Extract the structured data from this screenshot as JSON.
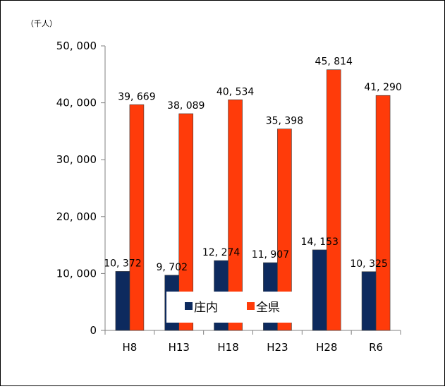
{
  "chart_data": {
    "type": "bar",
    "unit_label": "（千人）",
    "categories": [
      "H8",
      "H13",
      "H18",
      "H23",
      "H28",
      "R6"
    ],
    "series": [
      {
        "name": "庄内",
        "values": [
          10372,
          9702,
          12274,
          11907,
          14153,
          10325
        ],
        "labels": [
          "10, 372",
          "9, 702",
          "12, 274",
          "11, 907",
          "14, 153",
          "10, 325"
        ],
        "color": "#0d2a5e"
      },
      {
        "name": "全県",
        "values": [
          39669,
          38089,
          40534,
          35398,
          45814,
          41290
        ],
        "labels": [
          "39, 669",
          "38, 089",
          "40, 534",
          "35, 398",
          "45, 814",
          "41, 290"
        ],
        "color": "#ff3b0a"
      }
    ],
    "yticks": [
      0,
      10000,
      20000,
      30000,
      40000,
      50000
    ],
    "ytick_labels": [
      "0",
      "10, 000",
      "20, 000",
      "30, 000",
      "40, 000",
      "50, 000"
    ],
    "ylim": [
      0,
      50000
    ],
    "grid": false,
    "legend_position": "bottom-center-inside"
  }
}
